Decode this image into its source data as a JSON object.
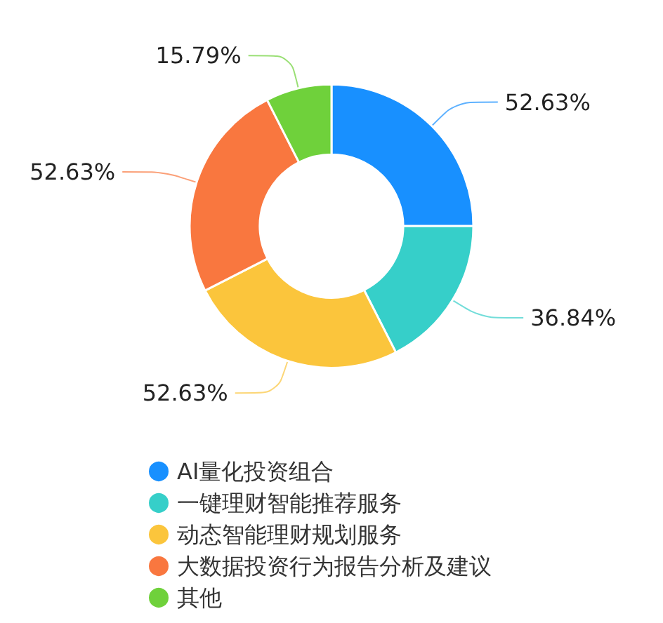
{
  "chart_data": {
    "type": "donut",
    "categories": [
      "AI量化投资组合",
      "一键理财智能推荐服务",
      "动态智能理财规划服务",
      "大数据投资行为报告分析及建议",
      "其他"
    ],
    "values": [
      52.63,
      36.84,
      52.63,
      52.63,
      15.79
    ],
    "colors": [
      "#1890ff",
      "#36cfc9",
      "#fbc53c",
      "#f9773f",
      "#6fd13b"
    ],
    "value_labels": [
      "52.63%",
      "36.84%",
      "52.63%",
      "52.63%",
      "15.79%"
    ],
    "legend": "bottom"
  }
}
